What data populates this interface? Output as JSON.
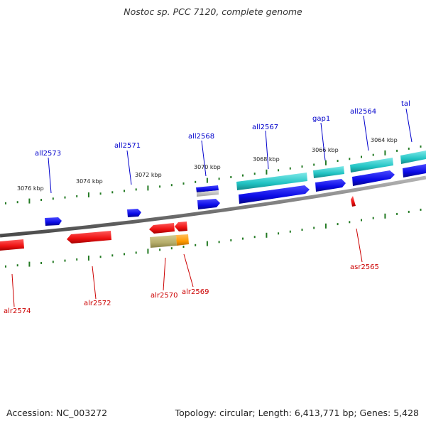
{
  "title": "Nostoc sp. PCC 7120, complete genome",
  "footer": {
    "accession": "Accession: NC_003272",
    "topology": "Topology: circular; Length: 6,413,771 bp; Genes: 5,428"
  },
  "colors": {
    "forward_gene": "#0a0ae6",
    "reverse_gene": "#ee1111",
    "rna_gene": "#22c4c4",
    "pseudo_gene": "#b5ad6a",
    "partial_gene": "#ff9900",
    "backbone": "#7a7a7a",
    "tick": "#237a23",
    "forward_label": "#0000cc",
    "reverse_label": "#cc0000"
  },
  "scale_labels": [
    "3076 kbp",
    "3074 kbp",
    "3072 kbp",
    "3070 kbp",
    "3068 kbp",
    "3066 kbp",
    "3064 kbp"
  ],
  "genes": {
    "forward": [
      {
        "id": "all2573",
        "label": "all2573"
      },
      {
        "id": "all2571",
        "label": "all2571"
      },
      {
        "id": "all2568",
        "label": "all2568"
      },
      {
        "id": "all2567",
        "label": "all2567"
      },
      {
        "id": "gap1",
        "label": "gap1"
      },
      {
        "id": "all2564",
        "label": "all2564"
      },
      {
        "id": "tal",
        "label": "tal"
      }
    ],
    "reverse": [
      {
        "id": "alr2574",
        "label": "alr2574"
      },
      {
        "id": "alr2572",
        "label": "alr2572"
      },
      {
        "id": "alr2570",
        "label": "alr2570"
      },
      {
        "id": "alr2569",
        "label": "alr2569"
      },
      {
        "id": "asr2565",
        "label": "asr2565"
      }
    ]
  }
}
